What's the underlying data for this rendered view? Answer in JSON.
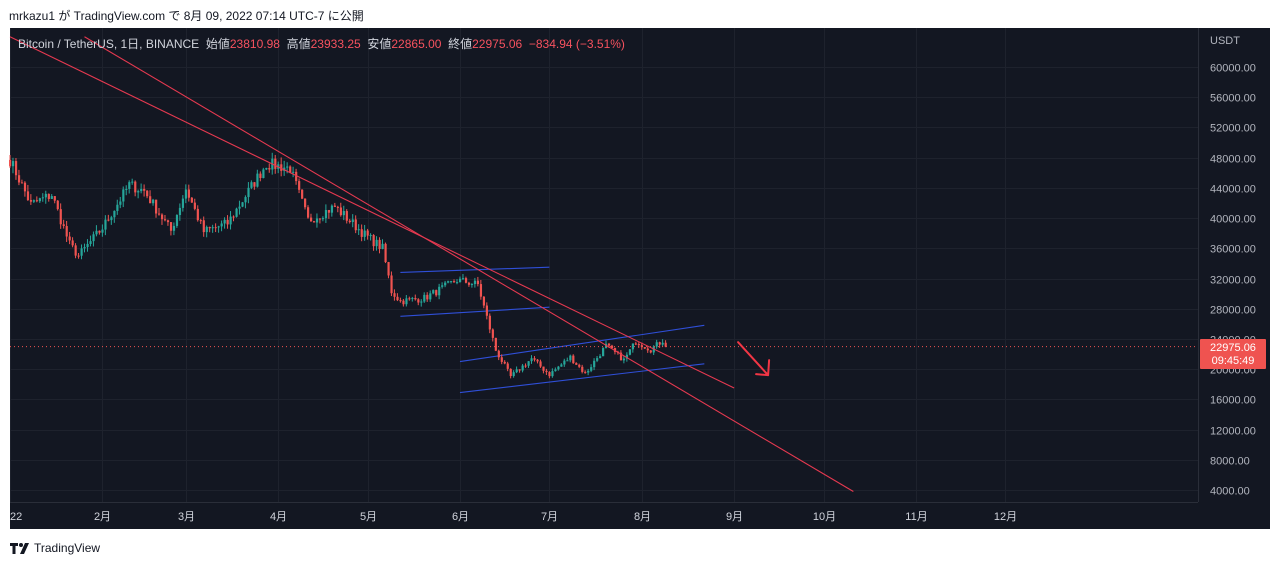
{
  "header": {
    "publisher_line": "mrkazu1 が TradingView.com で 8月 09, 2022 07:14 UTC-7 に公開"
  },
  "legend": {
    "symbol": "Bitcoin / TetherUS, 1日, BINANCE",
    "open_label": "始値",
    "open": "23810.98",
    "high_label": "高値",
    "high": "23933.25",
    "low_label": "安値",
    "low": "22865.00",
    "close_label": "終値",
    "close": "22975.06",
    "change": "−834.94 (−3.51%)"
  },
  "price_axis": {
    "currency": "USDT",
    "ticks": [
      "60000.00",
      "56000.00",
      "52000.00",
      "48000.00",
      "44000.00",
      "40000.00",
      "36000.00",
      "32000.00",
      "28000.00",
      "24000.00",
      "20000.00",
      "16000.00",
      "12000.00",
      "8000.00",
      "4000.00"
    ],
    "last_price": "22975.06",
    "countdown": "09:45:49"
  },
  "time_axis": {
    "ticks": [
      "22",
      "2月",
      "3月",
      "4月",
      "5月",
      "6月",
      "7月",
      "8月",
      "9月",
      "10月",
      "11月",
      "12月"
    ]
  },
  "footer": {
    "brand": "TradingView"
  },
  "colors": {
    "up": "#26a69a",
    "down": "#ef5350",
    "trend": "#e53950",
    "channel": "#2f4fd8",
    "background": "#131722"
  },
  "chart_data": {
    "type": "candlestick",
    "symbol": "BTCUSDT",
    "timeframe": "1D",
    "ylim": [
      2000,
      64000
    ],
    "x_range": [
      "2022-01-01",
      "2022-12-08"
    ],
    "last_close": 22975.06,
    "anchors": [
      [
        "2022-01-01",
        47700
      ],
      [
        "2022-01-08",
        41800
      ],
      [
        "2022-01-15",
        43100
      ],
      [
        "2022-01-21",
        36500
      ],
      [
        "2022-01-24",
        35000
      ],
      [
        "2022-02-01",
        38700
      ],
      [
        "2022-02-10",
        44400
      ],
      [
        "2022-02-15",
        43600
      ],
      [
        "2022-02-24",
        38300
      ],
      [
        "2022-03-01",
        43900
      ],
      [
        "2022-03-07",
        38200
      ],
      [
        "2022-03-15",
        39300
      ],
      [
        "2022-03-28",
        47200
      ],
      [
        "2022-04-05",
        46600
      ],
      [
        "2022-04-11",
        39700
      ],
      [
        "2022-04-20",
        41500
      ],
      [
        "2022-04-30",
        37800
      ],
      [
        "2022-05-06",
        36000
      ],
      [
        "2022-05-09",
        30300
      ],
      [
        "2022-05-12",
        29000
      ],
      [
        "2022-05-20",
        29400
      ],
      [
        "2022-05-31",
        31800
      ],
      [
        "2022-06-07",
        31200
      ],
      [
        "2022-06-13",
        22500
      ],
      [
        "2022-06-18",
        19000
      ],
      [
        "2022-06-25",
        21400
      ],
      [
        "2022-07-01",
        19300
      ],
      [
        "2022-07-08",
        21600
      ],
      [
        "2022-07-13",
        19400
      ],
      [
        "2022-07-20",
        23100
      ],
      [
        "2022-07-26",
        21200
      ],
      [
        "2022-07-30",
        23700
      ],
      [
        "2022-08-04",
        22600
      ],
      [
        "2022-08-08",
        23800
      ],
      [
        "2022-08-09",
        22975
      ]
    ],
    "trend_lines": [
      {
        "from": [
          "2022-01-01",
          64000
        ],
        "to": [
          "2022-09-01",
          17500
        ]
      },
      {
        "from": [
          "2022-01-26",
          64000
        ],
        "to": [
          "2022-10-11",
          3800
        ]
      }
    ],
    "channel_lines": [
      {
        "from": [
          "2022-05-12",
          32800
        ],
        "to": [
          "2022-07-01",
          33500
        ]
      },
      {
        "from": [
          "2022-05-12",
          27000
        ],
        "to": [
          "2022-07-01",
          28200
        ]
      },
      {
        "from": [
          "2022-06-01",
          21000
        ],
        "to": [
          "2022-08-22",
          25800
        ]
      },
      {
        "from": [
          "2022-06-01",
          16900
        ],
        "to": [
          "2022-08-22",
          20700
        ]
      }
    ],
    "annotations": [
      {
        "type": "arrow",
        "direction": "down-right",
        "at": [
          "2022-09-03",
          20000
        ]
      }
    ]
  }
}
